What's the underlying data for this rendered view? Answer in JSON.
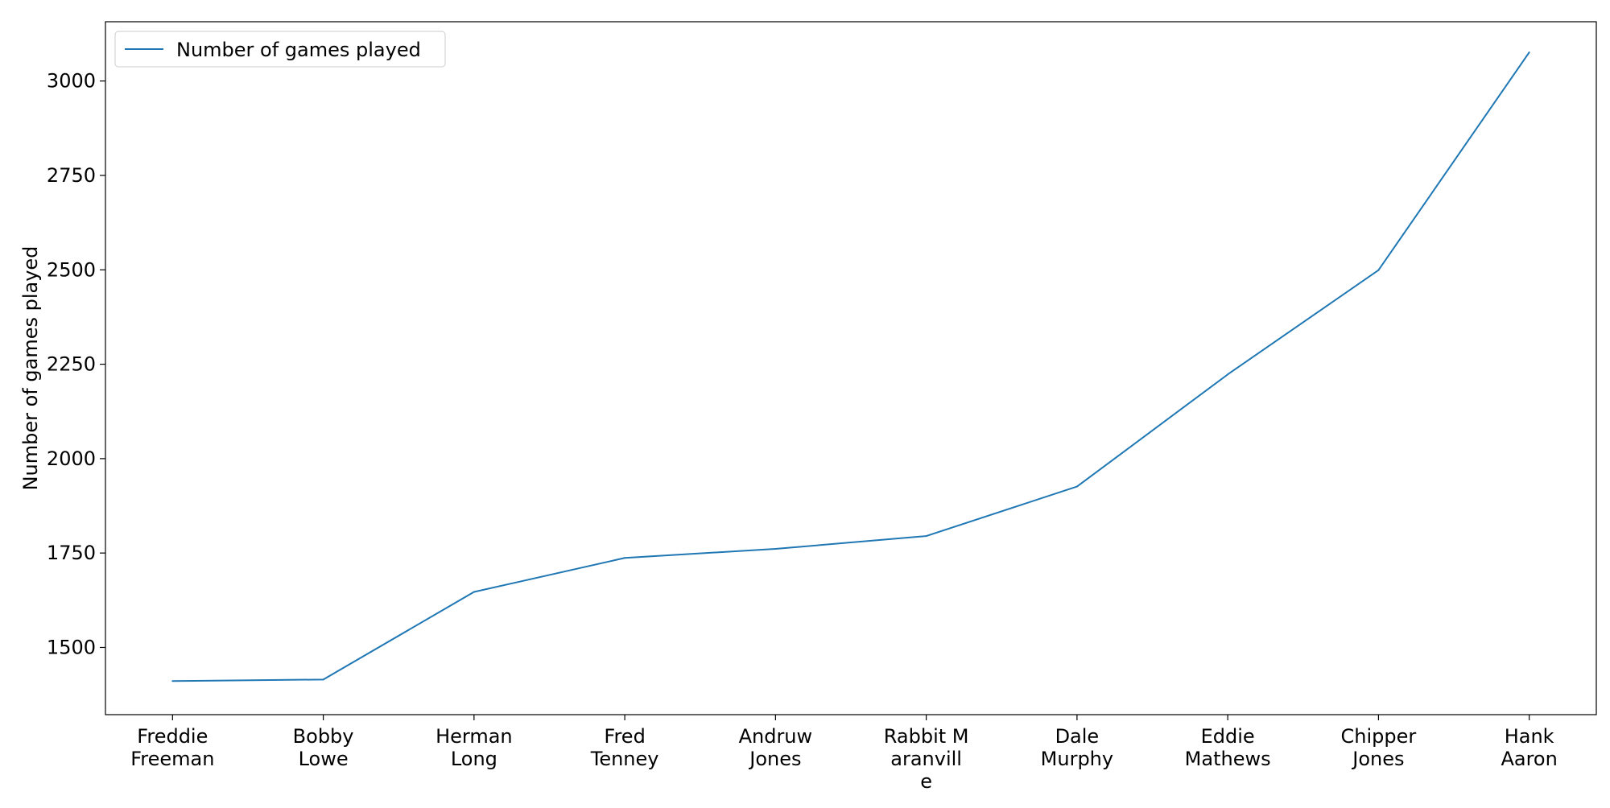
{
  "chart_data": {
    "type": "line",
    "title": "",
    "xlabel": "",
    "ylabel": "Number of games played",
    "categories": [
      "Freddie\nFreeman",
      "Bobby\nLowe",
      "Herman\nLong",
      "Fred\nTenney",
      "Andruw\nJones",
      "Rabbit M\naranvill\ne",
      "Dale\nMurphy",
      "Eddie\nMathews",
      "Chipper\nJones",
      "Hank\nAaron"
    ],
    "series": [
      {
        "name": "Number of games played",
        "color": "#1f77b4",
        "values": [
          1411,
          1415,
          1647,
          1737,
          1761,
          1795,
          1926,
          2223,
          2499,
          3076
        ]
      }
    ],
    "ylim": [
      1322,
      3157
    ],
    "yticks": [
      1500,
      1750,
      2000,
      2250,
      2500,
      2750,
      3000
    ],
    "grid": false,
    "legend_position": "top-left"
  }
}
